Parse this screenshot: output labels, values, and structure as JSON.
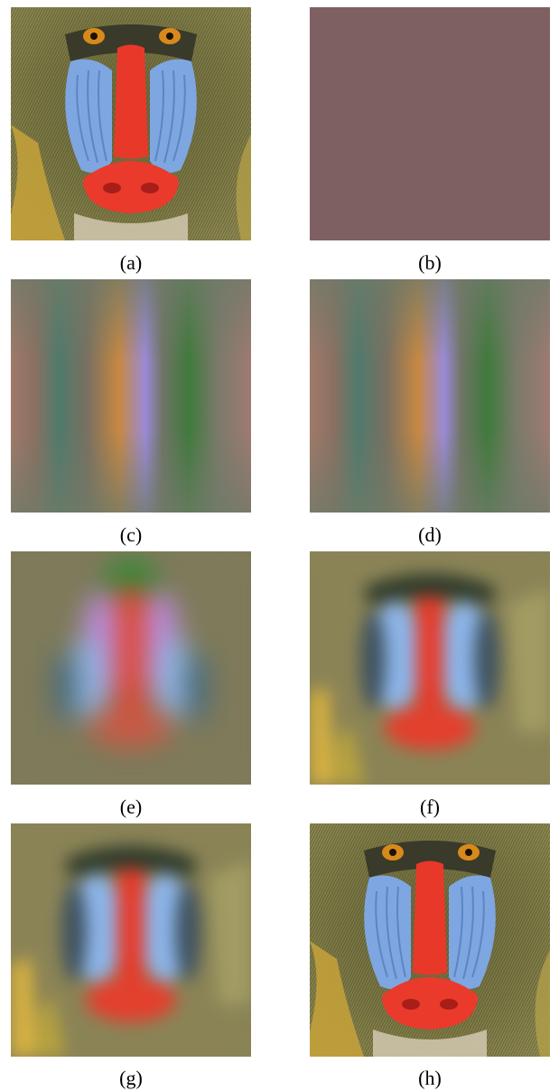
{
  "panels": [
    {
      "id": "a",
      "caption": "(a)",
      "content": "baboon-original"
    },
    {
      "id": "b",
      "caption": "(b)",
      "content": "flat-color",
      "fill_color": "#7e6063"
    },
    {
      "id": "c",
      "caption": "(c)",
      "content": "vertical-bands"
    },
    {
      "id": "d",
      "caption": "(d)",
      "content": "vertical-bands"
    },
    {
      "id": "e",
      "caption": "(e)",
      "content": "baboon-heavily-blurred"
    },
    {
      "id": "f",
      "caption": "(f)",
      "content": "baboon-blurred"
    },
    {
      "id": "g",
      "caption": "(g)",
      "content": "baboon-blurred"
    },
    {
      "id": "h",
      "caption": "(h)",
      "content": "baboon-reconstructed"
    }
  ]
}
